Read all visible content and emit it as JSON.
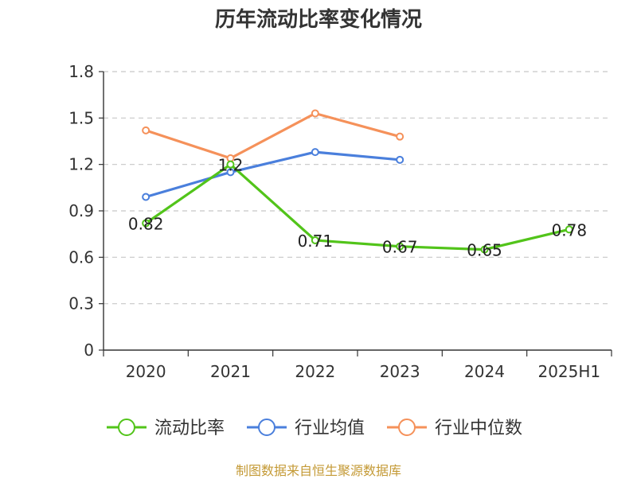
{
  "title": "历年流动比率变化情况",
  "source": "制图数据来自恒生聚源数据库",
  "chart_data": {
    "type": "line",
    "title": "历年流动比率变化情况",
    "categories": [
      "2020",
      "2021",
      "2022",
      "2023",
      "2024",
      "2025H1"
    ],
    "yticks": [
      "0",
      "0.3",
      "0.6",
      "0.9",
      "1.2",
      "1.5",
      "1.8"
    ],
    "ylim": [
      0,
      1.8
    ],
    "grid": true,
    "legend_position": "bottom",
    "series": [
      {
        "name": "流动比率",
        "color": "#52c41a",
        "values": [
          0.82,
          1.2,
          0.71,
          0.67,
          0.65,
          0.78
        ],
        "labels": [
          "0.82",
          "1.2",
          "0.71",
          "0.67",
          "0.65",
          "0.78"
        ]
      },
      {
        "name": "行业均值",
        "color": "#4a7fdc",
        "values": [
          0.99,
          1.15,
          1.28,
          1.23,
          null,
          null
        ]
      },
      {
        "name": "行业中位数",
        "color": "#f5915a",
        "values": [
          1.42,
          1.24,
          1.53,
          1.38,
          null,
          null
        ]
      }
    ]
  }
}
